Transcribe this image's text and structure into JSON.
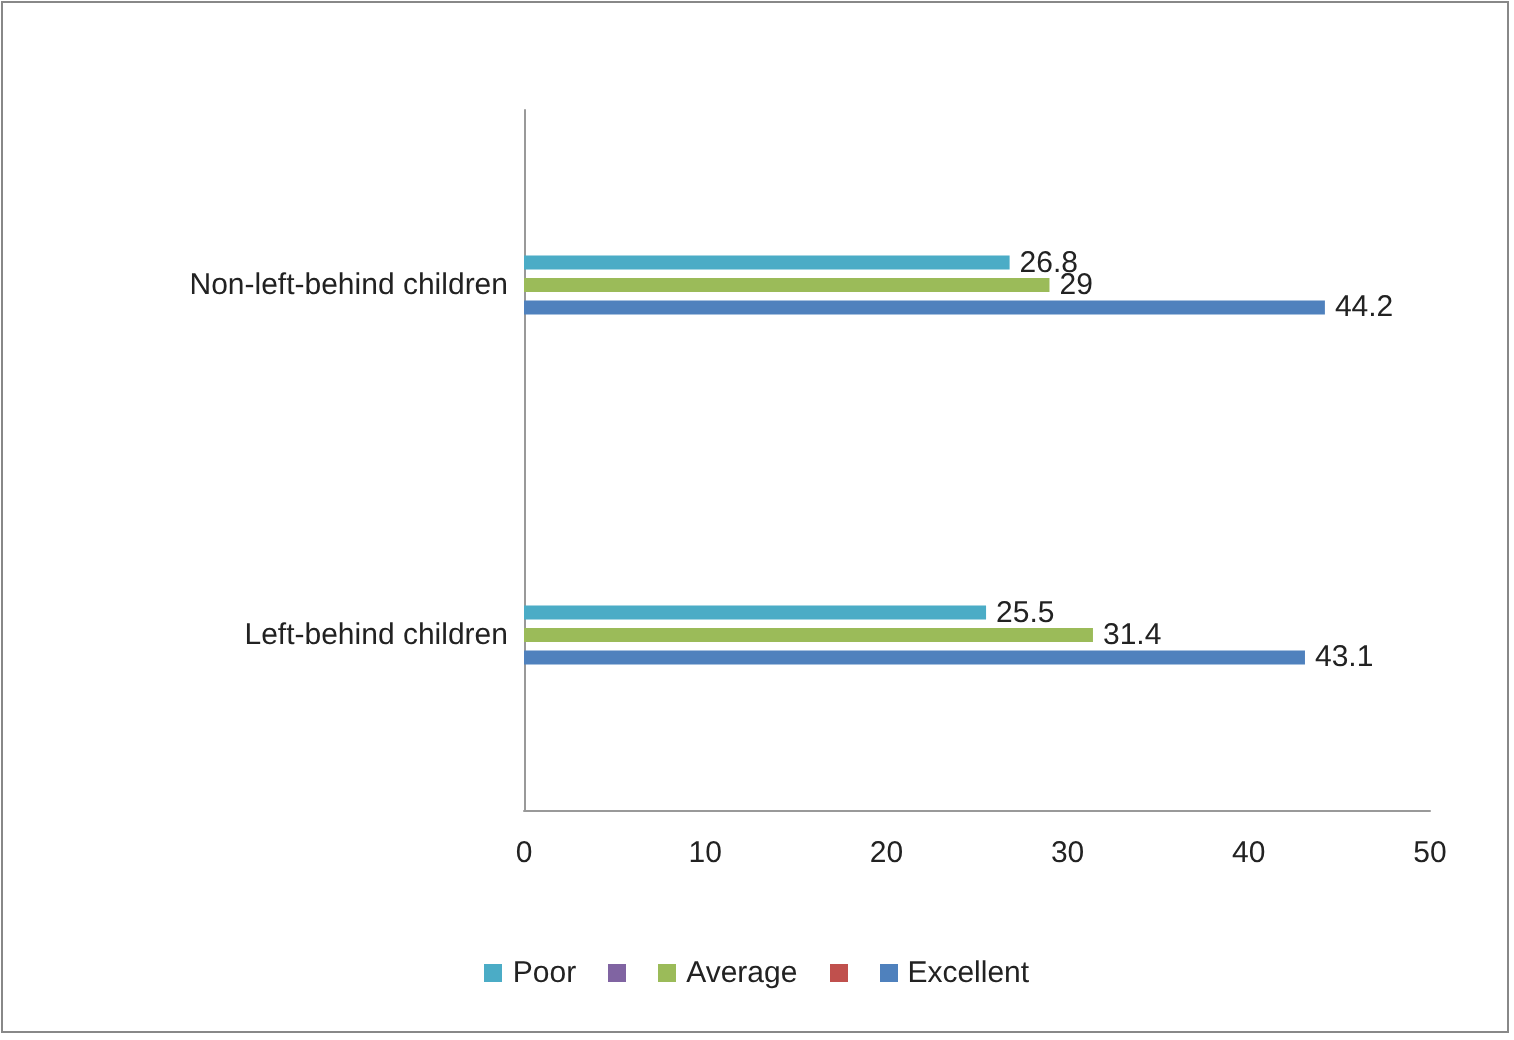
{
  "chart_data": {
    "type": "bar",
    "orientation": "horizontal",
    "categories": [
      "Non-left-behind children",
      "Left-behind children"
    ],
    "series": [
      {
        "name": "Poor",
        "color": "#4bacc6",
        "values": [
          26.8,
          25.5
        ]
      },
      {
        "color": "#8064a2",
        "values": [
          null,
          null
        ]
      },
      {
        "name": "Average",
        "color": "#9bbb59",
        "values": [
          29,
          31.4
        ]
      },
      {
        "color": "#c0504d",
        "values": [
          null,
          null
        ]
      },
      {
        "name": "Excellent",
        "color": "#4f81bd",
        "values": [
          44.2,
          43.1
        ]
      }
    ],
    "xlim": [
      0,
      50
    ],
    "xticks": [
      0,
      10,
      20,
      30,
      40,
      50
    ],
    "data_labels": true,
    "grid": false,
    "legend": "bottom"
  }
}
